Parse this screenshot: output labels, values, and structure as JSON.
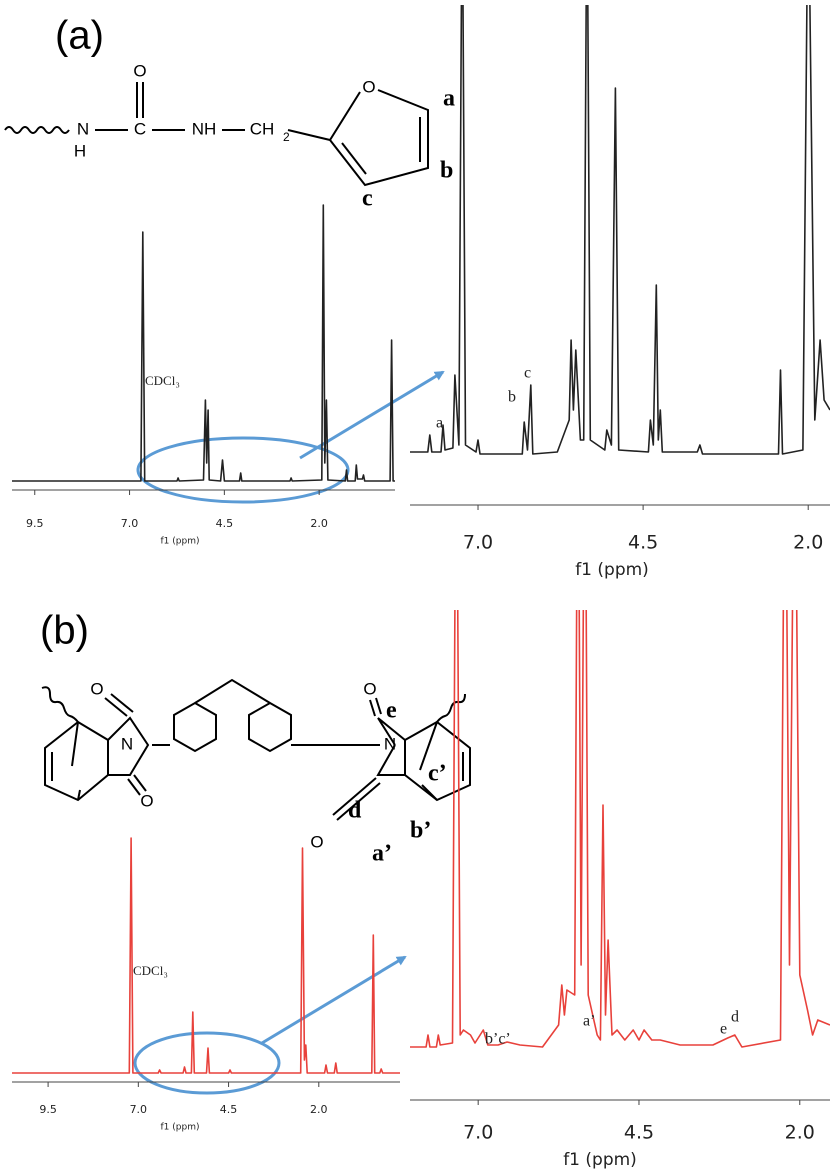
{
  "panels": [
    "(a)",
    "(b)"
  ],
  "structure_a": {
    "atoms": [
      "N",
      "H",
      "C",
      "O",
      "NH",
      "CH",
      "2",
      "O"
    ],
    "labels": [
      "a",
      "b",
      "c"
    ]
  },
  "structure_b": {
    "atoms": [
      "O",
      "O",
      "N",
      "N",
      "O",
      "O"
    ],
    "labels": [
      "e",
      "c’",
      "d",
      "b’",
      "a’"
    ]
  },
  "chart_data": [
    {
      "type": "line",
      "color": "#222222",
      "xlabel": "f1 (ppm)",
      "xlim": [
        10.1,
        0
      ],
      "ylim": [
        0,
        290
      ],
      "xticks": [
        9.5,
        {
          "value": 7,
          "label": "7.0"
        },
        4.5,
        {
          "value": 2,
          "label": "2.0"
        }
      ],
      "annotations": [
        "CDCl₃"
      ],
      "x": [
        10.1,
        6.7,
        6.65,
        6.6,
        5.75,
        5.72,
        5.69,
        5.05,
        5.0,
        4.965,
        4.93,
        4.9,
        4.6,
        4.55,
        4.5,
        4.1,
        4.07,
        4.04,
        2.77,
        2.74,
        2.71,
        1.93,
        1.89,
        1.85,
        1.81,
        1.77,
        1.31,
        1.28,
        1.25,
        1.05,
        1.02,
        0.99,
        0.86,
        0.83,
        0.8,
        0.13,
        0.09,
        0.05,
        0
      ],
      "values": [
        2,
        2,
        251,
        2,
        2,
        5,
        2,
        3,
        83,
        20,
        73,
        3,
        2,
        23,
        2,
        2,
        10,
        2,
        2,
        5,
        2,
        3,
        278,
        20,
        83,
        3,
        2,
        13,
        2,
        2,
        18,
        4,
        4,
        8,
        2,
        2,
        143,
        2,
        2
      ]
    },
    {
      "type": "line",
      "color": "#222222",
      "xlabel": "f1 (ppm)",
      "xlim": [
        8.03,
        1.67
      ],
      "ylim": [
        0,
        455
      ],
      "xticks": [
        {
          "value": 7,
          "label": "7.0"
        },
        4.5,
        {
          "value": 2,
          "label": "2.0"
        }
      ],
      "annotations": [
        "a",
        "b",
        "c"
      ],
      "x": [
        8.03,
        7.76,
        7.73,
        7.7,
        7.56,
        7.53,
        7.5,
        7.38,
        7.35,
        7.29,
        7.24,
        7.19,
        7.03,
        7.0,
        6.97,
        6.33,
        6.3,
        6.25,
        6.2,
        6.17,
        5.8,
        5.76,
        5.62,
        5.59,
        5.555,
        5.52,
        5.45,
        5.4,
        5.35,
        5.3,
        5.08,
        5.05,
        4.98,
        4.92,
        4.87,
        4.42,
        4.39,
        4.345,
        4.3,
        4.27,
        4.24,
        4.21,
        3.68,
        3.64,
        3.6,
        2.45,
        2.42,
        2.39,
        2.08,
        2.0,
        1.9,
        1.82,
        1.76,
        1.67
      ],
      "values": [
        8,
        8,
        25,
        8,
        8,
        35,
        10,
        12,
        85,
        15,
        600,
        15,
        8,
        20,
        6,
        6,
        38,
        10,
        75,
        6,
        8,
        15,
        40,
        120,
        50,
        110,
        20,
        20,
        600,
        20,
        10,
        30,
        15,
        372,
        10,
        8,
        40,
        15,
        175,
        20,
        50,
        8,
        8,
        15,
        6,
        6,
        90,
        6,
        10,
        600,
        40,
        120,
        60,
        50
      ]
    },
    {
      "type": "line",
      "color": "#e8413b",
      "xlabel": "f1 (ppm)",
      "xlim": [
        10.5,
        -0.25
      ],
      "ylim": [
        0,
        240
      ],
      "xticks": [
        9.5,
        {
          "value": 7,
          "label": "7.0"
        },
        4.5,
        {
          "value": 2,
          "label": "2.0"
        }
      ],
      "annotations": [
        "CDCl₃"
      ],
      "x": [
        10.5,
        7.25,
        7.2,
        7.15,
        6.45,
        6.41,
        6.37,
        5.76,
        5.72,
        5.68,
        5.53,
        5.49,
        5.45,
        5.11,
        5.07,
        5.03,
        4.5,
        4.46,
        4.42,
        2.5,
        2.45,
        2.4,
        2.36,
        2.32,
        1.84,
        1.8,
        1.76,
        1.57,
        1.53,
        1.49,
        0.53,
        0.49,
        0.45,
        0.31,
        0.27,
        0.23,
        -0.25
      ],
      "values": [
        2,
        2,
        237,
        2,
        2,
        5,
        2,
        2,
        8,
        2,
        2,
        63,
        2,
        2,
        27,
        2,
        2,
        5,
        2,
        2,
        227,
        15,
        30,
        2,
        2,
        10,
        2,
        2,
        12,
        2,
        2,
        140,
        2,
        2,
        6,
        2,
        2
      ]
    },
    {
      "type": "line",
      "color": "#e8413b",
      "xlabel": "f1 (ppm)",
      "xlim": [
        8.06,
        1.53
      ],
      "ylim": [
        0,
        445
      ],
      "xticks": [
        {
          "value": 7,
          "label": "7.0"
        },
        4.5,
        {
          "value": 2,
          "label": "2.0"
        }
      ],
      "annotations": [
        "b’c’",
        "a’",
        "e",
        "d"
      ],
      "x": [
        8.06,
        7.81,
        7.78,
        7.75,
        7.65,
        7.62,
        7.59,
        7.4,
        7.34,
        7.28,
        7.23,
        7.12,
        7.05,
        6.92,
        6.85,
        6.69,
        6.55,
        6.35,
        6.0,
        5.75,
        5.7,
        5.66,
        5.62,
        5.5,
        5.45,
        5.4,
        5.34,
        5.29,
        5.15,
        5.1,
        5.06,
        5.02,
        4.98,
        4.92,
        4.84,
        4.72,
        4.59,
        4.5,
        4.42,
        4.3,
        4.17,
        3.86,
        3.35,
        3.12,
        3.01,
        2.9,
        2.3,
        2.23,
        2.16,
        2.08,
        2.0,
        1.88,
        1.8,
        1.72,
        1.53
      ],
      "values": [
        8,
        8,
        20,
        8,
        8,
        20,
        10,
        12,
        700,
        20,
        25,
        20,
        12,
        25,
        10,
        10,
        13,
        10,
        8,
        30,
        70,
        40,
        65,
        60,
        700,
        90,
        700,
        60,
        20,
        15,
        250,
        40,
        115,
        20,
        25,
        15,
        25,
        15,
        25,
        15,
        15,
        10,
        10,
        17,
        20,
        8,
        15,
        700,
        90,
        700,
        80,
        45,
        20,
        35,
        30
      ]
    }
  ]
}
